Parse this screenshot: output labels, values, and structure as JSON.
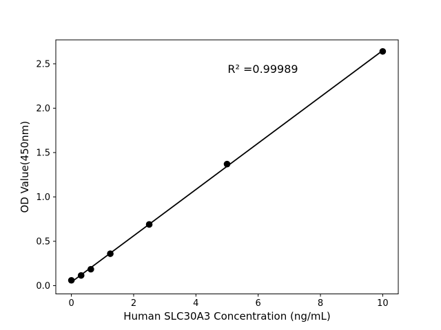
{
  "figure": {
    "background_color": "#ffffff",
    "foreground_color": "#000000"
  },
  "chart_data": {
    "type": "scatter",
    "title": "",
    "xlabel": "Human SLC30A3 Concentration (ng/mL)",
    "ylabel": "OD Value(450nm)",
    "annotation": {
      "text": "R² =0.99989",
      "x": 6.15,
      "y": 2.44
    },
    "x": [
      0,
      0.313,
      0.625,
      1.25,
      2.5,
      5,
      10
    ],
    "y": [
      0.06,
      0.115,
      0.185,
      0.36,
      0.69,
      1.37,
      2.64
    ],
    "trendline": {
      "x1": 0,
      "y1": 0.04,
      "x2": 10,
      "y2": 2.65
    },
    "xlim": [
      -0.5,
      10.5
    ],
    "ylim": [
      -0.093,
      2.77
    ],
    "xticks": [
      0,
      2,
      4,
      6,
      8,
      10
    ],
    "xtick_labels": [
      "0",
      "2",
      "4",
      "6",
      "8",
      "10"
    ],
    "yticks": [
      0.0,
      0.5,
      1.0,
      1.5,
      2.0,
      2.5
    ],
    "ytick_labels": [
      "0.0",
      "0.5",
      "1.0",
      "1.5",
      "2.0",
      "2.5"
    ],
    "grid": false,
    "legend": false,
    "marker_color": "#000000",
    "line_color": "#000000",
    "frame_color": "#000000"
  }
}
